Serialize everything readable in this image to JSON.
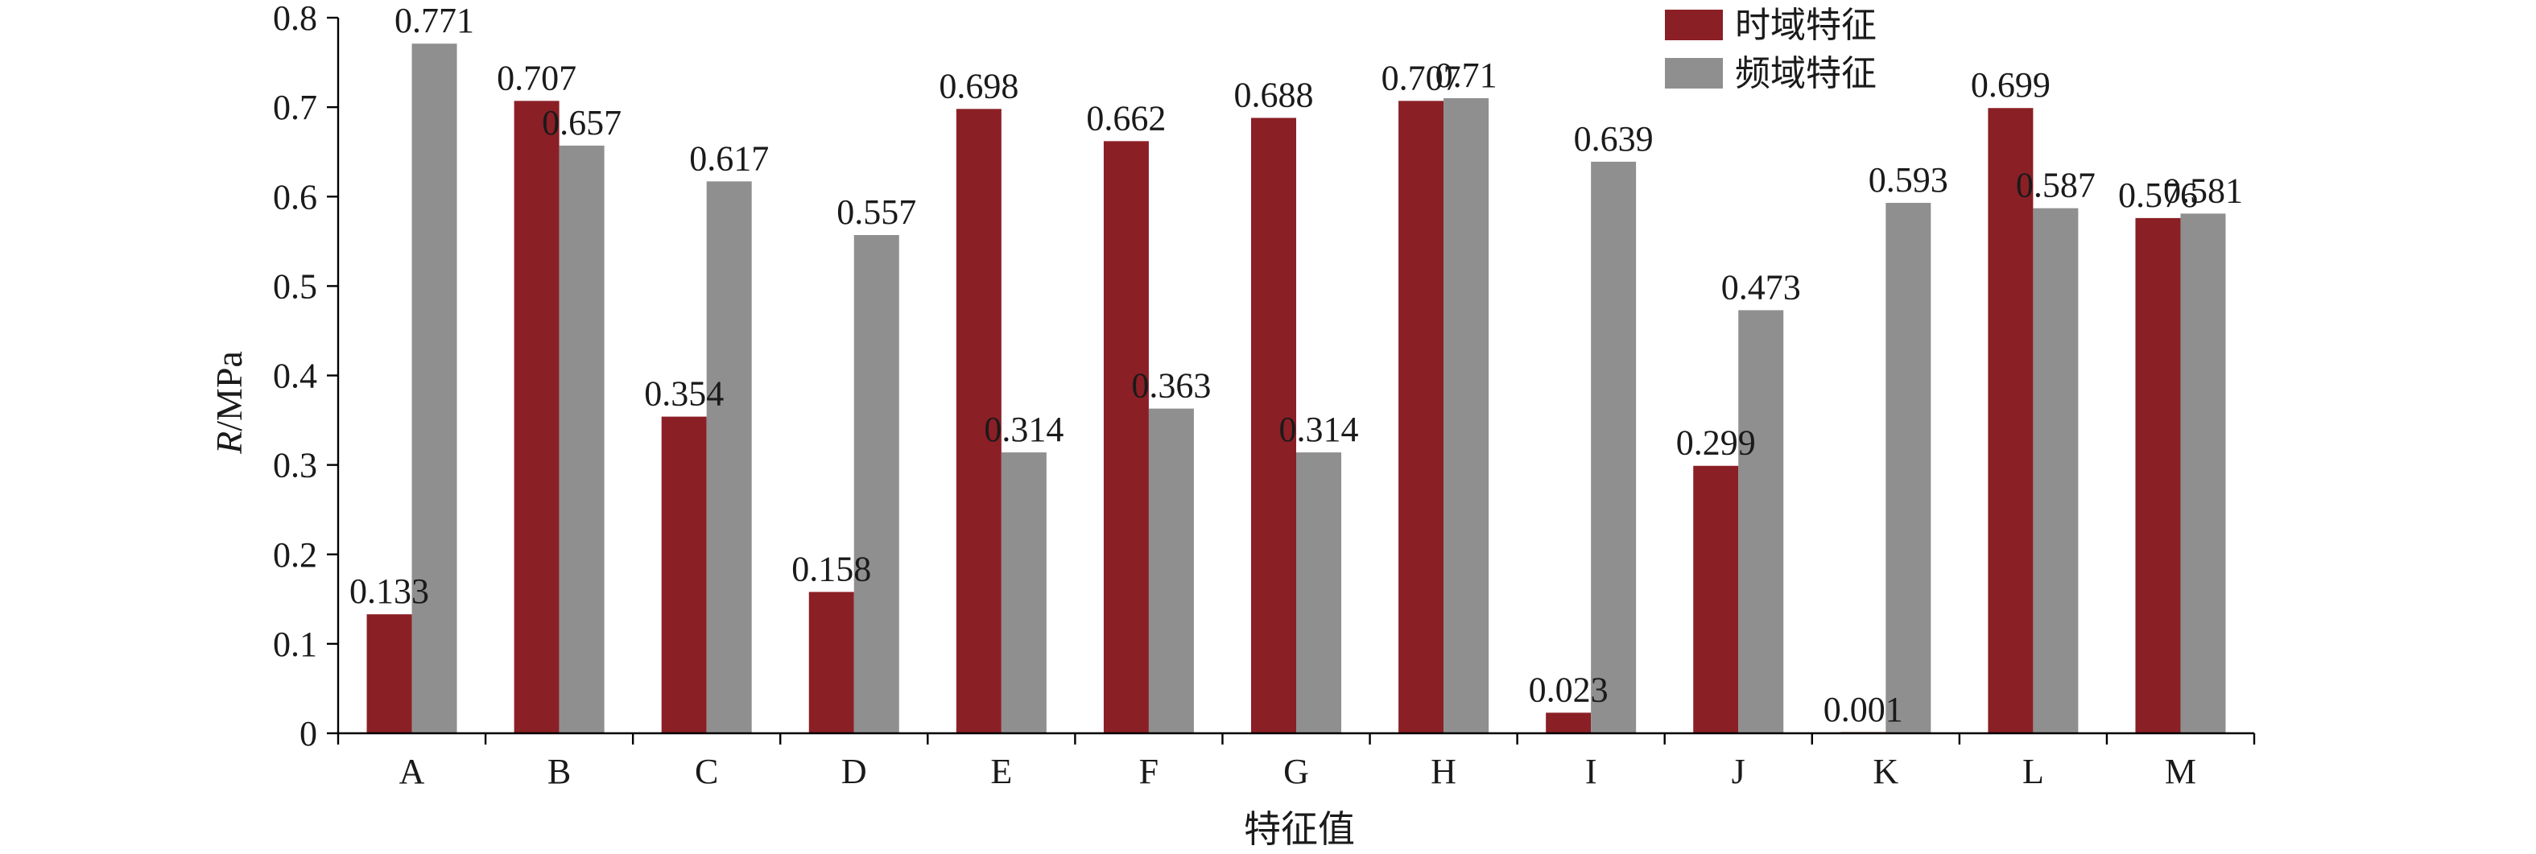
{
  "chart_data": {
    "type": "bar",
    "categories": [
      "A",
      "B",
      "C",
      "D",
      "E",
      "F",
      "G",
      "H",
      "I",
      "J",
      "K",
      "L",
      "M"
    ],
    "series": [
      {
        "name": "时域特征",
        "color": "#8b1f26",
        "values": [
          0.133,
          0.707,
          0.354,
          0.158,
          0.698,
          0.662,
          0.688,
          0.707,
          0.023,
          0.299,
          0.001,
          0.699,
          0.576
        ],
        "labels": [
          "0.133",
          "0.707",
          "0.354",
          "0.158",
          "0.698",
          "0.662",
          "0.688",
          "0.707",
          "0.023",
          "0.299",
          "0.001",
          "0.699",
          "0.576"
        ]
      },
      {
        "name": "频域特征",
        "color": "#8f8f8f",
        "values": [
          0.771,
          0.657,
          0.617,
          0.557,
          0.314,
          0.363,
          0.314,
          0.71,
          0.639,
          0.473,
          0.593,
          0.587,
          0.581
        ],
        "labels": [
          "0.771",
          "0.657",
          "0.617",
          "0.557",
          "0.314",
          "0.363",
          "0.314",
          "0.71",
          "0.639",
          "0.473",
          "0.593",
          "0.587",
          "0.581"
        ]
      }
    ],
    "xlabel": "特征值",
    "ylabel": {
      "italic": "R",
      "rest": "/MPa"
    },
    "ylim": [
      0,
      0.8
    ],
    "yticks": [
      "0",
      "0.1",
      "0.2",
      "0.3",
      "0.4",
      "0.5",
      "0.6",
      "0.7",
      "0.8"
    ],
    "grid": false,
    "legend_position": "top-right"
  }
}
